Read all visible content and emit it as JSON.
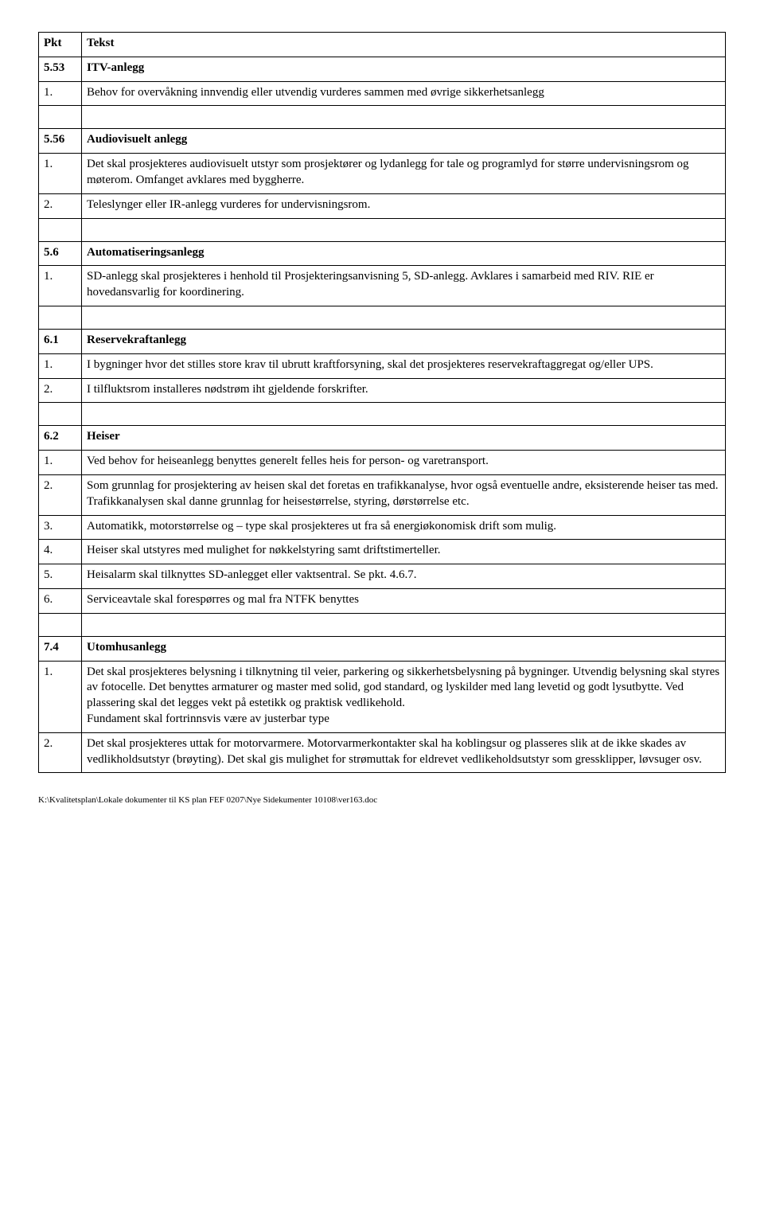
{
  "header": {
    "pkt": "Pkt",
    "tekst": "Tekst"
  },
  "sections": [
    {
      "num": "5.53",
      "title": "ITV-anlegg",
      "items": [
        {
          "n": "1.",
          "t": "Behov for overvåkning innvendig eller utvendig vurderes sammen med øvrige sikkerhetsanlegg"
        }
      ]
    },
    {
      "num": "5.56",
      "title": "Audiovisuelt anlegg",
      "items": [
        {
          "n": "1.",
          "t": "Det skal prosjekteres audiovisuelt utstyr som prosjektører og lydanlegg for tale og programlyd for større undervisningsrom og møterom. Omfanget avklares med byggherre."
        },
        {
          "n": "2.",
          "t": "Teleslynger eller IR-anlegg vurderes for undervisningsrom."
        }
      ]
    },
    {
      "num": "5.6",
      "title": "Automatiseringsanlegg",
      "items": [
        {
          "n": "1.",
          "t": "SD-anlegg skal prosjekteres i henhold til Prosjekteringsanvisning 5, SD-anlegg. Avklares i samarbeid med RIV. RIE er hovedansvarlig for koordinering."
        }
      ]
    },
    {
      "num": "6.1",
      "title": "Reservekraftanlegg",
      "items": [
        {
          "n": "1.",
          "t": "I bygninger hvor det stilles store krav til ubrutt kraftforsyning, skal det prosjekteres reservekraftaggregat og/eller UPS."
        },
        {
          "n": "2.",
          "t": "I tilfluktsrom installeres nødstrøm iht gjeldende forskrifter."
        }
      ]
    },
    {
      "num": "6.2",
      "title": "Heiser",
      "items": [
        {
          "n": "1.",
          "t": "Ved behov for heiseanlegg benyttes generelt felles heis for person- og varetransport."
        },
        {
          "n": "2.",
          "t": "Som grunnlag for prosjektering av heisen skal det foretas en trafikkanalyse, hvor også eventuelle andre, eksisterende heiser tas med.  Trafikkanalysen skal danne grunnlag for heisestørrelse, styring, dørstørrelse etc."
        },
        {
          "n": "3.",
          "t": "Automatikk, motorstørrelse og – type skal prosjekteres ut fra så energiøkonomisk drift som mulig."
        },
        {
          "n": "4.",
          "t": "Heiser skal utstyres med mulighet for nøkkelstyring samt driftstimerteller."
        },
        {
          "n": "5.",
          "t": "Heisalarm skal tilknyttes SD-anlegget eller vaktsentral. Se pkt. 4.6.7."
        },
        {
          "n": "6.",
          "t": "Serviceavtale skal forespørres og mal fra NTFK benyttes"
        }
      ]
    },
    {
      "num": "7.4",
      "title": "Utomhusanlegg",
      "items": [
        {
          "n": "1.",
          "t": "Det skal prosjekteres belysning i tilknytning til veier, parkering og sikkerhetsbelysning på bygninger.  Utvendig belysning skal styres av fotocelle.  Det benyttes armaturer og master med solid, god standard, og lyskilder med lang levetid og godt lysutbytte.  Ved plassering skal det legges vekt på estetikk og praktisk vedlikehold.\nFundament skal fortrinnsvis være av justerbar type"
        },
        {
          "n": "2.",
          "t": "Det skal prosjekteres uttak for motorvarmere. Motorvarmerkontakter skal ha koblingsur og plasseres slik at de ikke skades av vedlikholdsutstyr (brøyting).  Det skal gis mulighet for strømuttak for eldrevet vedlikeholdsutstyr som gressklipper, løvsuger osv."
        }
      ]
    }
  ],
  "footer": "K:\\Kvalitetsplan\\Lokale dokumenter til KS plan FEF 0207\\Nye Sidekumenter 10108\\ver163.doc"
}
